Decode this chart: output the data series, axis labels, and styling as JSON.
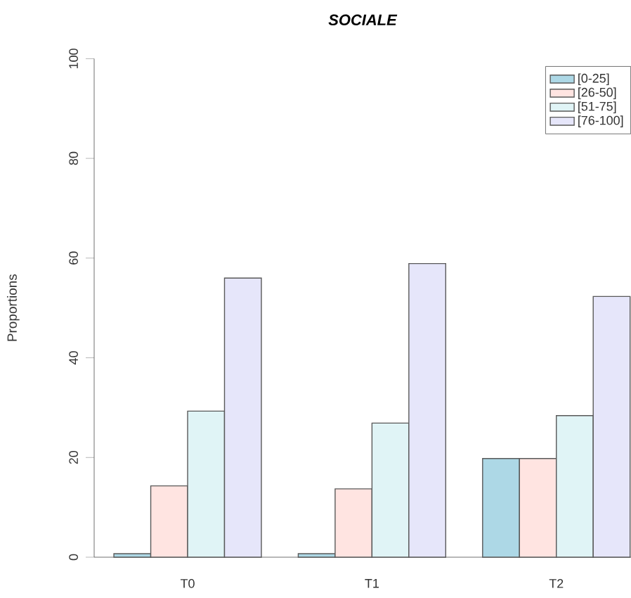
{
  "chart_data": {
    "type": "bar",
    "title": "SOCIALE",
    "ylabel": "Proportions",
    "categories": [
      "T0",
      "T1",
      "T2"
    ],
    "series": [
      {
        "name": "[0-25]",
        "color": "#add8e6",
        "values": [
          0.7,
          0.7,
          19.8
        ]
      },
      {
        "name": "[26-50]",
        "color": "#ffe4e1",
        "values": [
          14.3,
          13.7,
          19.8
        ]
      },
      {
        "name": "[51-75]",
        "color": "#e0f4f6",
        "values": [
          29.3,
          26.9,
          28.4
        ]
      },
      {
        "name": "[76-100]",
        "color": "#e6e6fa",
        "values": [
          56.0,
          58.9,
          52.3
        ]
      }
    ],
    "ylim": [
      0,
      100
    ],
    "yticks": [
      0,
      20,
      40,
      60,
      80,
      100
    ],
    "legend": "top right"
  }
}
